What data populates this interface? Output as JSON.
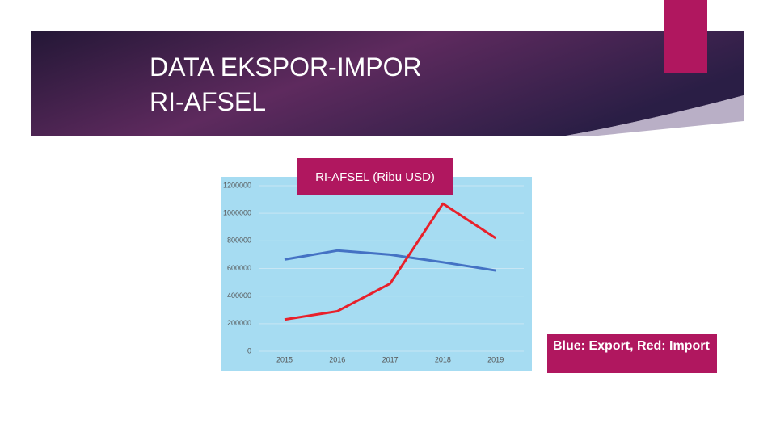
{
  "slide": {
    "title": [
      "DATA EKSPOR-IMPOR",
      "RI-AFSEL"
    ]
  },
  "chart_data": {
    "type": "line",
    "title": "RI-AFSEL (Ribu USD)",
    "categories": [
      "2015",
      "2016",
      "2017",
      "2018",
      "2019"
    ],
    "series": [
      {
        "color": "#4472c4",
        "values": [
          665000,
          730000,
          700000,
          645000,
          585000
        ]
      },
      {
        "color": "#e8202a",
        "values": [
          230000,
          290000,
          490000,
          1070000,
          820000
        ]
      }
    ],
    "ylim": [
      0,
      1200000
    ],
    "yticks": [
      0,
      200000,
      400000,
      600000,
      800000,
      1000000,
      1200000
    ],
    "grid": true,
    "annotation": "Blue: Export, Red: Import"
  }
}
